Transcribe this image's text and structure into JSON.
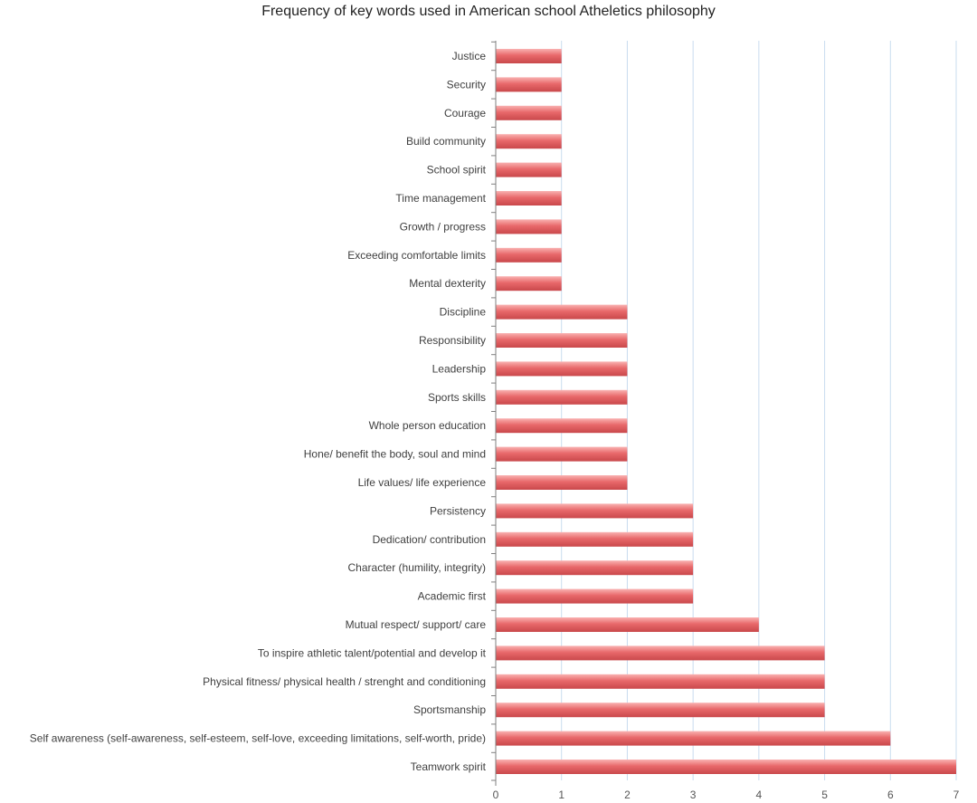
{
  "chart_data": {
    "type": "bar",
    "orientation": "horizontal",
    "title": "Frequency of key words used in American school Atheletics philosophy",
    "xlabel": "",
    "ylabel": "",
    "xlim": [
      0,
      7
    ],
    "xticks": [
      0,
      1,
      2,
      3,
      4,
      5,
      6,
      7
    ],
    "grid": true,
    "legend": "none",
    "categories": [
      "Justice",
      "Security",
      "Courage",
      "Build community",
      "School spirit",
      "Time management",
      "Growth / progress",
      "Exceeding comfortable limits",
      "Mental dexterity",
      "Discipline",
      "Responsibility",
      "Leadership",
      "Sports skills",
      "Whole person education",
      "Hone/ benefit the body, soul and mind",
      "Life values/ life experience",
      "Persistency",
      "Dedication/ contribution",
      "Character (humility, integrity)",
      "Academic first",
      "Mutual respect/ support/ care",
      "To inspire athletic talent/potential and develop it",
      "Physical fitness/ physical health / strenght and conditioning",
      "Sportsmanship",
      "Self awareness (self-awareness, self-esteem, self-love, exceeding limitations, self-worth, pride)",
      "Teamwork spirit"
    ],
    "values": [
      1,
      1,
      1,
      1,
      1,
      1,
      1,
      1,
      1,
      2,
      2,
      2,
      2,
      2,
      2,
      2,
      3,
      3,
      3,
      3,
      4,
      5,
      5,
      5,
      6,
      7
    ],
    "colors": {
      "bar_light": "#f9b1b1",
      "bar_mid": "#e8686a",
      "bar_dark": "#c9484b",
      "grid": "#c9dcef",
      "axis": "#7f7f7f"
    }
  }
}
